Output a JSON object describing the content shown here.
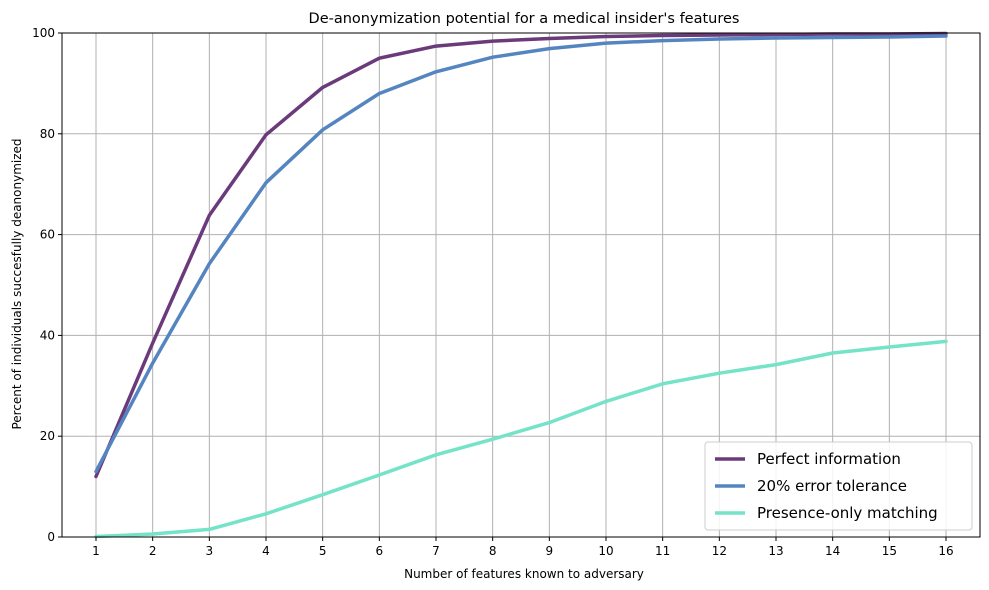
{
  "chart_data": {
    "type": "line",
    "title": "De-anonymization potential for a medical insider's features",
    "xlabel": "Number of features known to adversary",
    "ylabel": "Percent of individuals succesfully deanonymized",
    "x": [
      1,
      2,
      3,
      4,
      5,
      6,
      7,
      8,
      9,
      10,
      11,
      12,
      13,
      14,
      15,
      16
    ],
    "xlim": [
      0.4,
      16.6
    ],
    "ylim": [
      0,
      100
    ],
    "yticks": [
      0,
      20,
      40,
      60,
      80,
      100
    ],
    "grid": true,
    "legend_position": "lower-right",
    "series": [
      {
        "name": "Perfect information",
        "color": "#6b3a7a",
        "values": [
          12.0,
          38.5,
          63.8,
          79.8,
          89.2,
          95.0,
          97.4,
          98.4,
          98.9,
          99.3,
          99.5,
          99.6,
          99.7,
          99.8,
          99.8,
          99.9
        ]
      },
      {
        "name": "20% error tolerance",
        "color": "#5585c1",
        "values": [
          13.0,
          34.5,
          54.2,
          70.3,
          80.8,
          88.0,
          92.3,
          95.2,
          96.9,
          98.0,
          98.5,
          98.8,
          99.0,
          99.1,
          99.2,
          99.4
        ]
      },
      {
        "name": "Presence-only matching",
        "color": "#74e3c8",
        "values": [
          0.1,
          0.6,
          1.5,
          4.6,
          8.4,
          12.3,
          16.3,
          19.4,
          22.7,
          26.9,
          30.4,
          32.5,
          34.2,
          36.5,
          37.7,
          38.8
        ]
      }
    ]
  }
}
